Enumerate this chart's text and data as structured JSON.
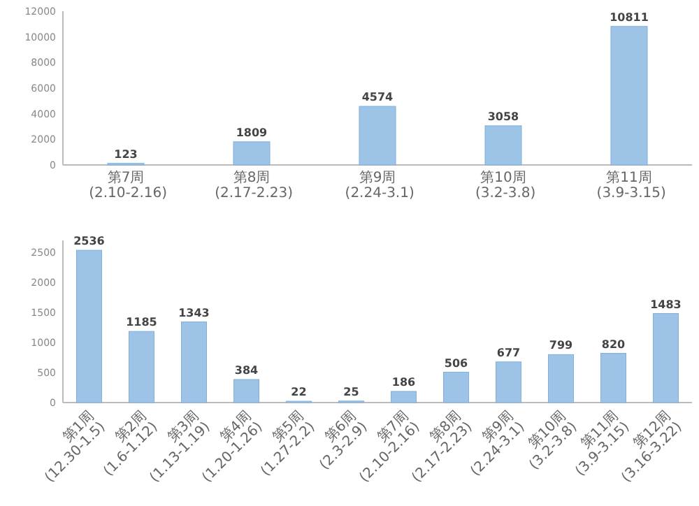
{
  "chart_data": [
    {
      "type": "bar",
      "categories": [
        "第7周 (2.10-2.16)",
        "第8周 (2.17-2.23)",
        "第9周 (2.24-3.1)",
        "第10周 (3.2-3.8)",
        "第11周 (3.9-3.15)"
      ],
      "values": [
        123,
        1809,
        4574,
        3058,
        10811
      ],
      "color": "#9dc3e6",
      "ylim": [
        0,
        12000
      ],
      "yticks": [
        0,
        2000,
        4000,
        6000,
        8000,
        10000,
        12000
      ],
      "data_labels": true
    },
    {
      "type": "bar",
      "categories": [
        "第1周 (12.30-1.5)",
        "第2周 (1.6-1.12)",
        "第3周 (1.13-1.19)",
        "第4周 (1.20-1.26)",
        "第5周 (1.27-2.2)",
        "第6周 (2.3-2.9)",
        "第7周 (2.10-2.16)",
        "第8周 (2.17-2.23)",
        "第9周 (2.24-3.1)",
        "第10周 (3.2-3.8)",
        "第11周 (3.9-3.15)",
        "第12周 (3.16-3.22)"
      ],
      "values": [
        2536,
        1185,
        1343,
        384,
        22,
        25,
        186,
        506,
        677,
        799,
        820,
        1483
      ],
      "color": "#9dc3e6",
      "ylim": [
        0,
        2700
      ],
      "yticks": [
        0,
        500,
        1000,
        1500,
        2000,
        2500
      ],
      "data_labels": true
    }
  ]
}
